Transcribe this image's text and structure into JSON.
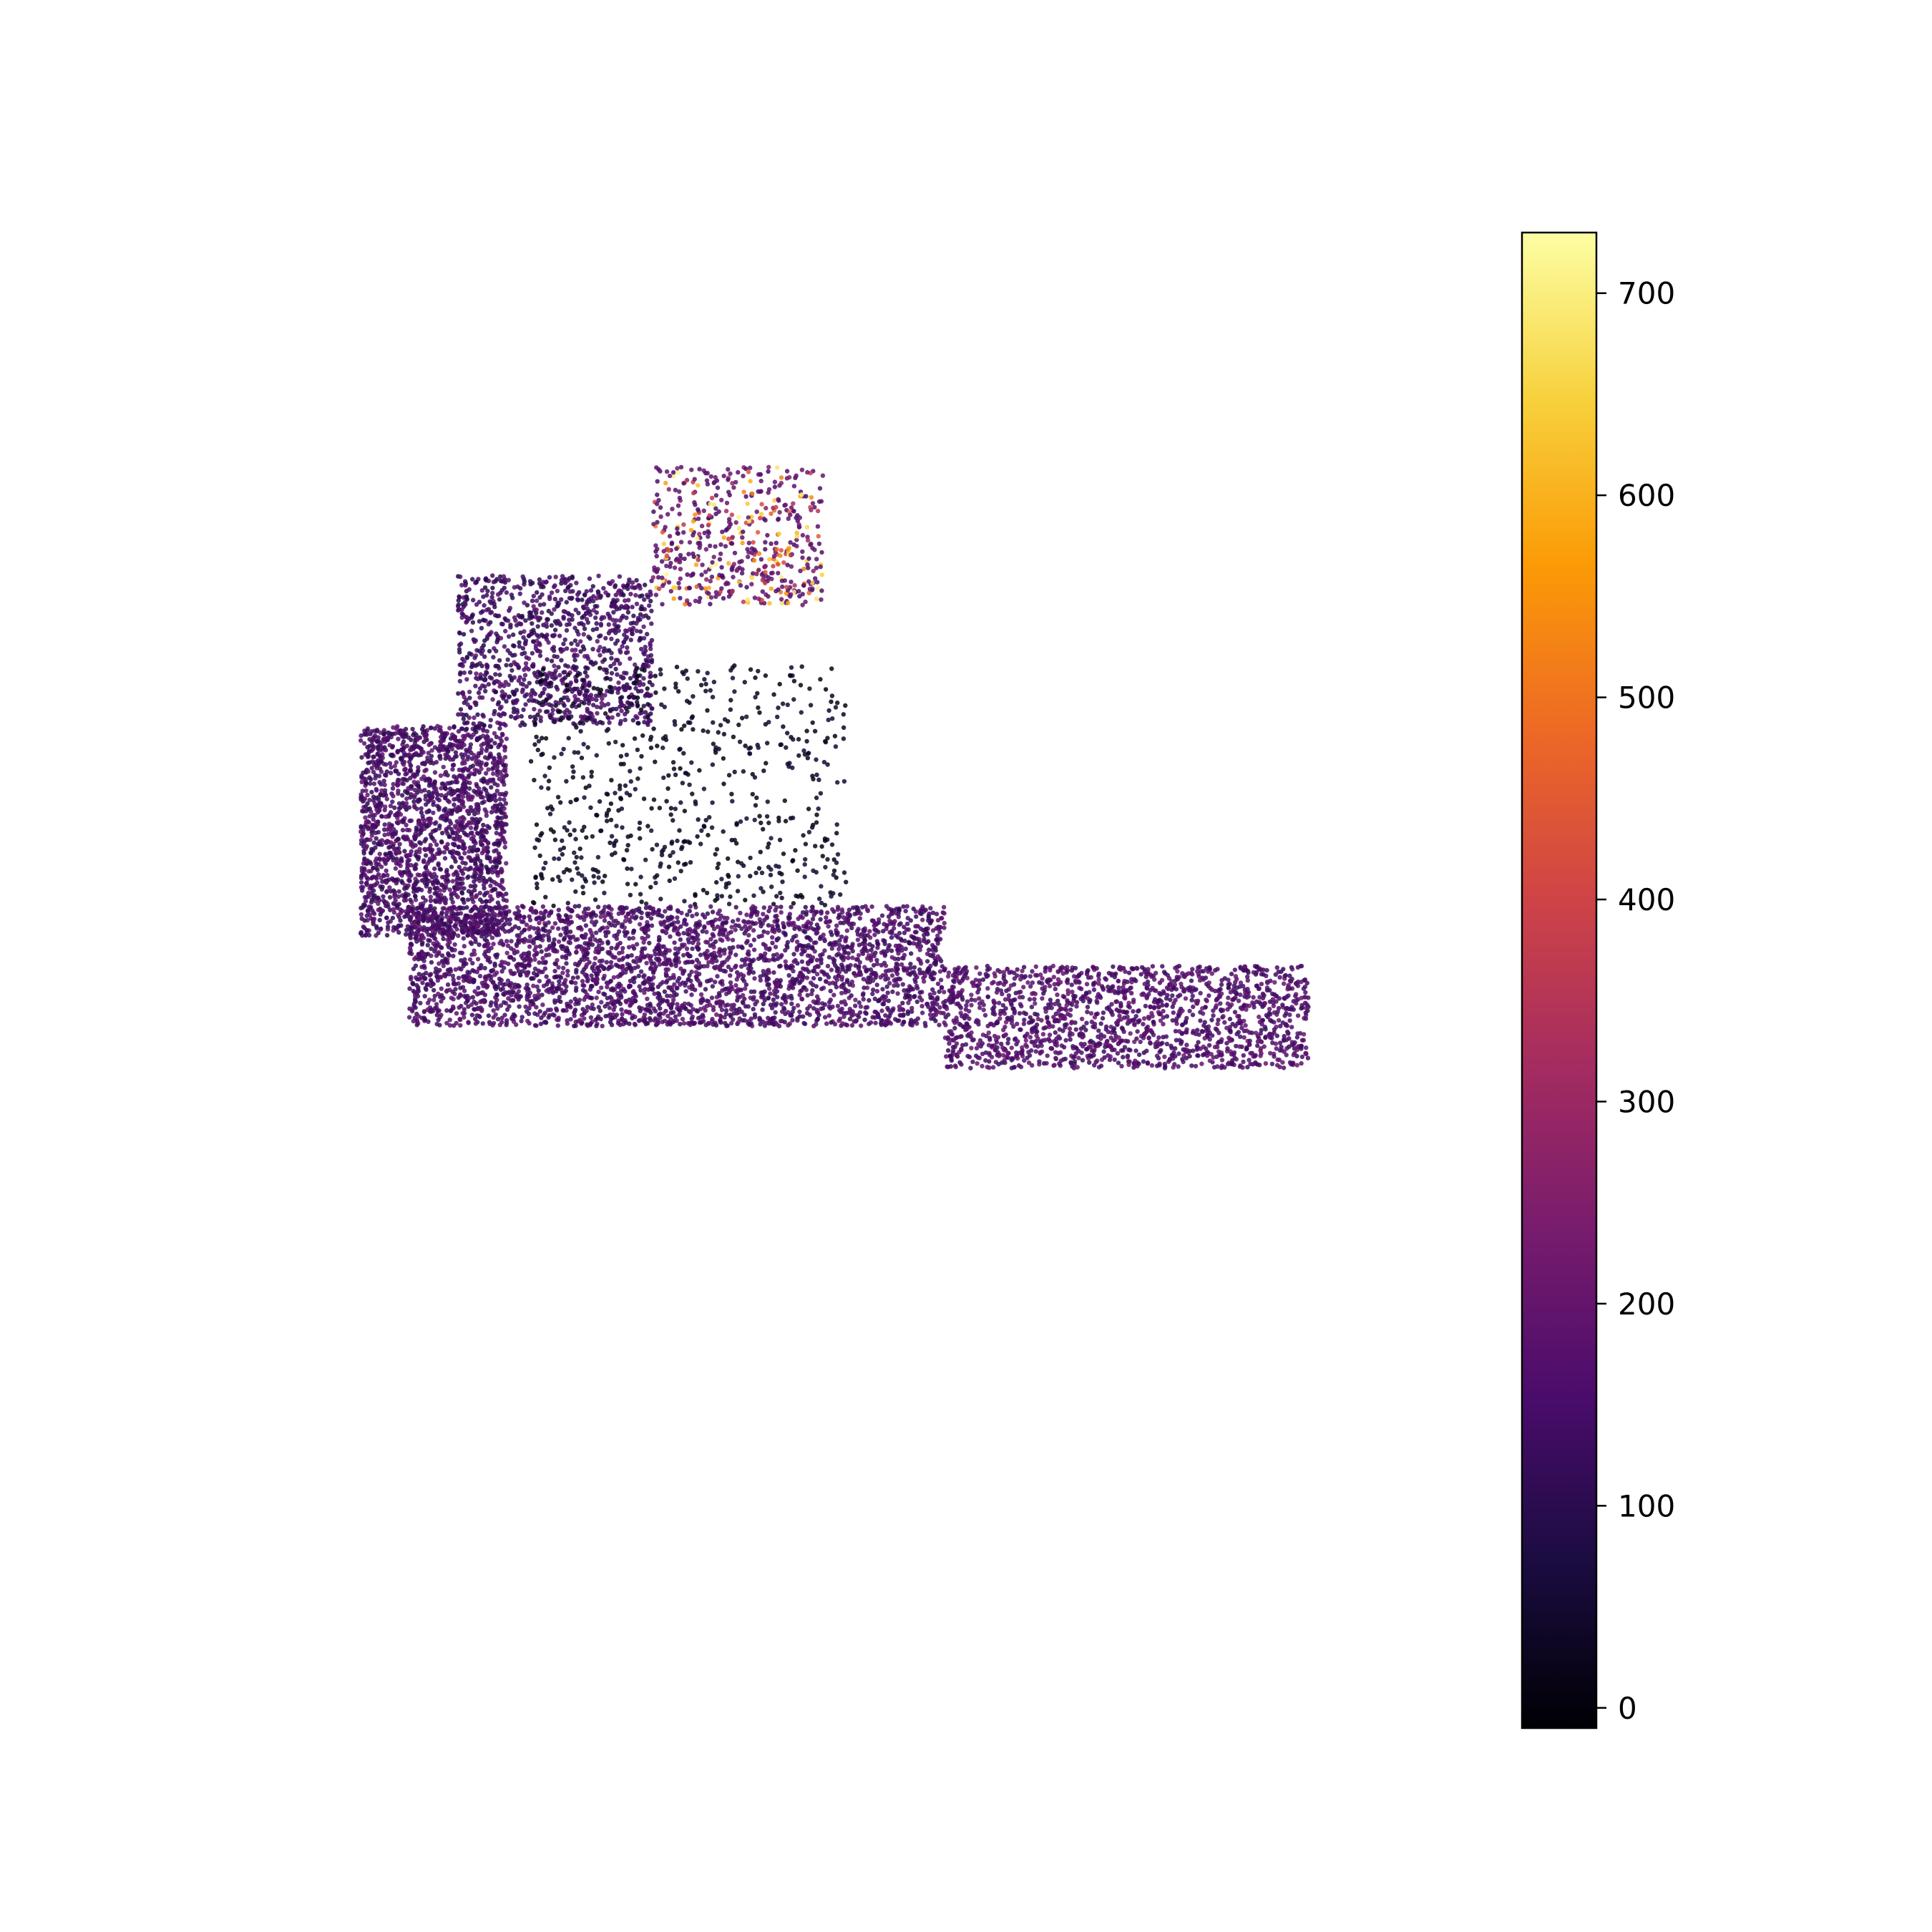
{
  "chart_data": {
    "type": "scatter",
    "title": "",
    "xlabel": "",
    "ylabel": "",
    "axes_visible": false,
    "grid": false,
    "colormap": "inferno",
    "colorbar": {
      "range": [
        -10,
        730
      ],
      "ticks": [
        0,
        100,
        200,
        300,
        400,
        500,
        600,
        700
      ],
      "tick_labels": [
        "0",
        "100",
        "200",
        "300",
        "400",
        "500",
        "600",
        "700"
      ],
      "stops": [
        "#000004",
        "#1b0c41",
        "#4a0c6b",
        "#781c6d",
        "#a52c60",
        "#cf4446",
        "#ed6925",
        "#fb9b06",
        "#f7d13d",
        "#fcffa4"
      ]
    },
    "point_cloud": {
      "description_shape": "boomerang",
      "dominant_value_range": [
        120,
        200
      ],
      "dark_band_value": 40,
      "bright_tip_value": 720,
      "approx_point_count": 9000
    },
    "series": [
      {
        "regions": [
          {
            "x": [
              -0.9,
              -0.6
            ],
            "y": [
              0.0,
              0.35
            ],
            "weight": 0.22,
            "values": [
              100,
              200
            ]
          },
          {
            "x": [
              -0.8,
              0.3
            ],
            "y": [
              -0.15,
              0.05
            ],
            "weight": 0.35,
            "values": [
              110,
              200
            ]
          },
          {
            "x": [
              0.3,
              1.05
            ],
            "y": [
              -0.22,
              -0.05
            ],
            "weight": 0.18,
            "values": [
              120,
              210
            ]
          },
          {
            "x": [
              -0.7,
              -0.3
            ],
            "y": [
              0.35,
              0.6
            ],
            "weight": 0.12,
            "values": [
              80,
              190
            ]
          },
          {
            "x": [
              -0.3,
              0.05
            ],
            "y": [
              0.55,
              0.78
            ],
            "weight": 0.06,
            "values": [
              150,
              720
            ]
          },
          {
            "x": [
              -0.55,
              0.1
            ],
            "y": [
              0.05,
              0.45
            ],
            "weight": 0.07,
            "values": [
              0,
              60
            ]
          }
        ]
      }
    ],
    "xlim": [
      -1.2,
      1.3
    ],
    "ylim": [
      -1.3,
      1.2
    ]
  }
}
